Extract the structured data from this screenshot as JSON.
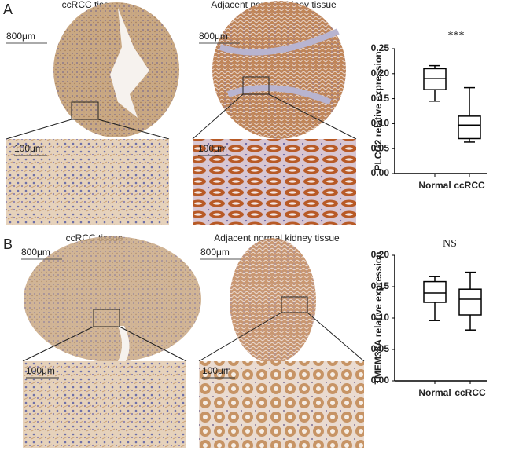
{
  "figure": {
    "panels": [
      {
        "label": "A",
        "images": [
          {
            "title": "ccRCC tissue",
            "scale_overview": "800μm",
            "scale_zoom": "100μm"
          },
          {
            "title": "Adjacent normal kidney tissue",
            "scale_overview": "800μm",
            "scale_zoom": "100μm"
          }
        ]
      },
      {
        "label": "B",
        "images": [
          {
            "title": "ccRCC tissue",
            "scale_overview": "800μm",
            "scale_zoom": "100μm"
          },
          {
            "title": "Adjacent normal kidney tissue",
            "scale_overview": "800μm",
            "scale_zoom": "100μm"
          }
        ]
      }
    ]
  },
  "chart_data": [
    {
      "type": "box",
      "ylabel": "PLCG2 relative expression",
      "annotation": "***",
      "categories": [
        "Normal",
        "ccRCC"
      ],
      "boxes": [
        {
          "min": 0.145,
          "q1": 0.168,
          "median": 0.19,
          "q3": 0.21,
          "max": 0.216
        },
        {
          "min": 0.063,
          "q1": 0.07,
          "median": 0.097,
          "q3": 0.115,
          "max": 0.172
        }
      ],
      "color": "#000000",
      "ylim": [
        0,
        0.25
      ],
      "yticks": [
        {
          "value": 0,
          "label": "0.00"
        },
        0.05,
        {
          "value": 0.1,
          "label": "0.10"
        },
        0.15,
        {
          "value": 0.2,
          "label": "0.20"
        },
        0.25
      ]
    },
    {
      "type": "box",
      "ylabel": "TMEM38A relative expression",
      "annotation": "NS",
      "categories": [
        "Normal",
        "ccRCC"
      ],
      "boxes": [
        {
          "min": 0.096,
          "q1": 0.125,
          "median": 0.14,
          "q3": 0.158,
          "max": 0.166
        },
        {
          "min": 0.081,
          "q1": 0.105,
          "median": 0.13,
          "q3": 0.146,
          "max": 0.173
        }
      ],
      "color": "#000000",
      "ylim": [
        0,
        0.2
      ],
      "yticks": [
        {
          "value": 0,
          "label": "0.00"
        },
        0.05,
        {
          "value": 0.1,
          "label": "0.10"
        },
        0.15,
        {
          "value": 0.2,
          "label": "0.20"
        }
      ]
    }
  ]
}
